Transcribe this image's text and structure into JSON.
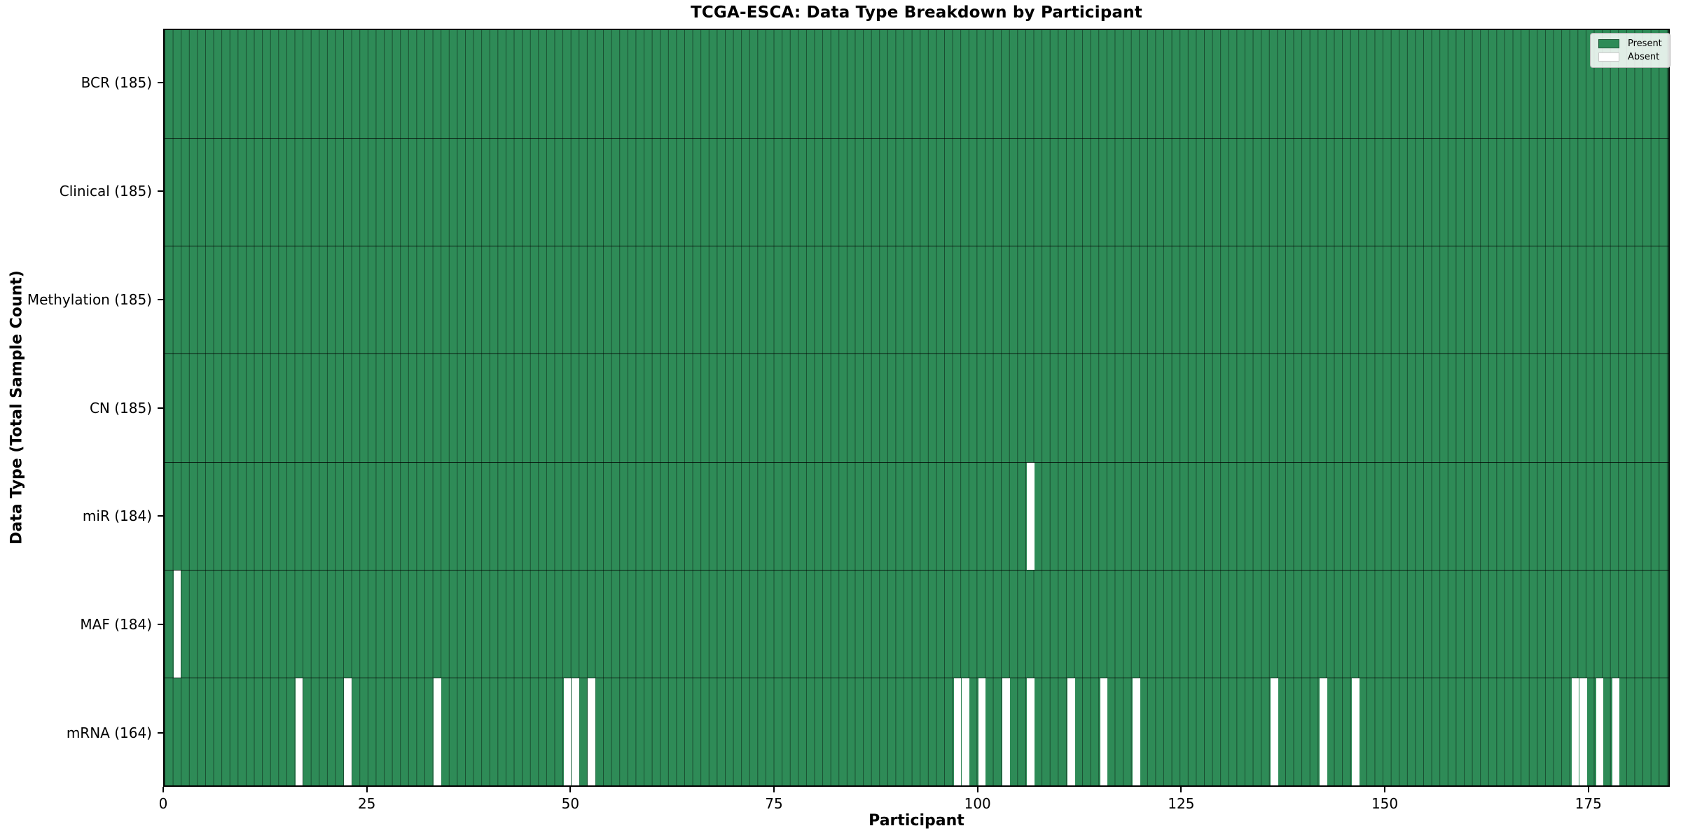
{
  "title": "TCGA-ESCA: Data Type Breakdown by Participant",
  "colors": {
    "present": "#2E8B57",
    "absent": "#ffffff",
    "cell_border": "rgba(0,0,0,0.45)",
    "row_border": "rgba(0,0,0,0.8)",
    "spine": "#000000",
    "legend_bg": "rgba(255,255,255,0.85)",
    "legend_border": "#b5b5b5",
    "present_swatch_border": "rgba(0,0,0,0.4)",
    "absent_swatch_border": "#c8c8c8"
  },
  "chart_data": {
    "type": "heatmap",
    "title": "TCGA-ESCA: Data Type Breakdown by Participant",
    "x_axis": {
      "label": "Participant",
      "min": 0,
      "max": 185,
      "ticks": [
        0,
        25,
        50,
        75,
        100,
        125,
        150,
        175
      ]
    },
    "y_axis": {
      "label": "Data Type (Total Sample Count)"
    },
    "n_participants": 185,
    "cell_states": [
      "Present",
      "Absent"
    ],
    "rows": [
      {
        "name": "BCR",
        "label": "BCR (185)",
        "total": 185,
        "missing_participants": []
      },
      {
        "name": "Clinical",
        "label": "Clinical (185)",
        "total": 185,
        "missing_participants": []
      },
      {
        "name": "Methylation",
        "label": "Methylation (185)",
        "total": 185,
        "missing_participants": []
      },
      {
        "name": "CN",
        "label": "CN (185)",
        "total": 185,
        "missing_participants": []
      },
      {
        "name": "miR",
        "label": "miR (184)",
        "total": 184,
        "missing_participants": [
          106
        ]
      },
      {
        "name": "MAF",
        "label": "MAF (184)",
        "total": 184,
        "missing_participants": [
          1
        ]
      },
      {
        "name": "mRNA",
        "label": "mRNA (164)",
        "total": 164,
        "missing_participants": [
          16,
          22,
          33,
          49,
          50,
          52,
          97,
          98,
          100,
          103,
          106,
          111,
          115,
          119,
          136,
          142,
          146,
          173,
          174,
          176,
          178
        ]
      }
    ],
    "legend": [
      {
        "label": "Present",
        "color": "#2E8B57"
      },
      {
        "label": "Absent",
        "color": "#ffffff"
      }
    ],
    "legend_position": "top-right",
    "grid": "per-participant vertical cell borders, horizontal row separators"
  }
}
